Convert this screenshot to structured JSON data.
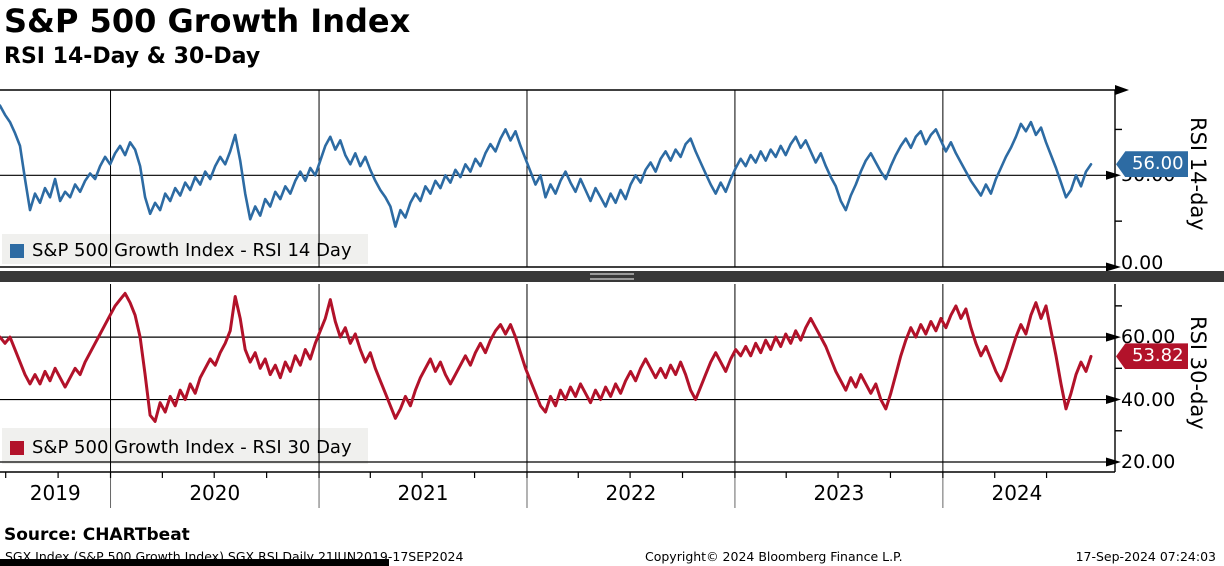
{
  "header": {
    "title": "S&P 500 Growth Index",
    "subtitle": "RSI 14-Day & 30-Day"
  },
  "colors": {
    "rsi14": "#2d6ba3",
    "rsi30": "#b2122a",
    "legend_bg": "#f0f0ee",
    "grid": "#000000",
    "separator": "#383838"
  },
  "right_axis": {
    "top": {
      "title": "RSI 14-day",
      "labels": [
        {
          "value": 50,
          "text": "50.00"
        },
        {
          "value": 0,
          "text": "0.00"
        }
      ],
      "minor_ticks": [
        25,
        75
      ],
      "badge": {
        "text": "56.00",
        "value": 56.0
      }
    },
    "bottom": {
      "title": "RSI 30-day",
      "labels": [
        {
          "value": 60,
          "text": "60.00"
        },
        {
          "value": 40,
          "text": "40.00"
        },
        {
          "value": 20,
          "text": "20.00"
        }
      ],
      "minor_ticks": [
        30,
        50,
        70
      ],
      "badge": {
        "text": "53.82",
        "value": 53.82
      }
    }
  },
  "legends": {
    "rsi14": "S&P 500 Growth Index - RSI 14 Day",
    "rsi30": "S&P 500 Growth Index - RSI 30 Day"
  },
  "x_axis": {
    "years": [
      "2019",
      "2020",
      "2021",
      "2022",
      "2023",
      "2024"
    ],
    "start_date": "21JUN2019",
    "end_date": "17SEP2024"
  },
  "footer": {
    "source": "Source: CHARTbeat",
    "left": "SGX Index (S&P 500 Growth Index) SGX RSI  Daily 21JUN2019-17SEP2024",
    "center": "Copyright© 2024 Bloomberg Finance L.P.",
    "right": "17-Sep-2024 07:24:03"
  },
  "chart_data": [
    {
      "type": "line",
      "title": "S&P 500 Growth Index - RSI 14 Day",
      "xlabel": "",
      "ylabel": "RSI 14-day",
      "x_range": [
        "21JUN2019",
        "17SEP2024"
      ],
      "ylim": [
        0,
        96.5
      ],
      "yticks": [
        0,
        50
      ],
      "legend_position": "bottom-left",
      "grid": true,
      "color": "#2d6ba3",
      "last_value": 56.0,
      "values": [
        88,
        83,
        79,
        73,
        66,
        48,
        31,
        40,
        35,
        43,
        38,
        48,
        36,
        41,
        38,
        45,
        41,
        47,
        51,
        48,
        55,
        60,
        56,
        62,
        66,
        61,
        68,
        64,
        55,
        38,
        29,
        35,
        31,
        40,
        36,
        43,
        39,
        46,
        42,
        49,
        45,
        52,
        48,
        55,
        60,
        56,
        63,
        72,
        58,
        40,
        26,
        33,
        28,
        37,
        33,
        41,
        37,
        44,
        40,
        47,
        52,
        47,
        54,
        50,
        58,
        66,
        71,
        64,
        69,
        61,
        56,
        62,
        55,
        60,
        53,
        47,
        42,
        38,
        33,
        22,
        31,
        27,
        35,
        40,
        36,
        44,
        40,
        47,
        43,
        50,
        46,
        53,
        49,
        56,
        52,
        59,
        55,
        62,
        67,
        63,
        70,
        75,
        69,
        74,
        66,
        59,
        52,
        45,
        50,
        38,
        45,
        40,
        47,
        52,
        46,
        41,
        48,
        42,
        36,
        43,
        38,
        33,
        40,
        35,
        42,
        37,
        45,
        50,
        46,
        53,
        57,
        52,
        59,
        63,
        58,
        64,
        60,
        67,
        70,
        63,
        57,
        51,
        45,
        40,
        46,
        41,
        48,
        54,
        59,
        55,
        61,
        57,
        63,
        58,
        64,
        60,
        66,
        61,
        67,
        71,
        65,
        69,
        63,
        57,
        62,
        55,
        49,
        44,
        36,
        31,
        39,
        45,
        52,
        58,
        62,
        57,
        52,
        48,
        55,
        61,
        66,
        70,
        65,
        71,
        74,
        67,
        72,
        75,
        69,
        63,
        68,
        62,
        57,
        52,
        47,
        43,
        39,
        45,
        40,
        48,
        54,
        60,
        65,
        71,
        78,
        74,
        79,
        72,
        76,
        68,
        61,
        54,
        46,
        38,
        42,
        50,
        44,
        52,
        56
      ]
    },
    {
      "type": "line",
      "title": "S&P 500 Growth Index - RSI 30 Day",
      "xlabel": "",
      "ylabel": "RSI 30-day",
      "x_range": [
        "21JUN2019",
        "17SEP2024"
      ],
      "ylim": [
        16.8,
        77
      ],
      "yticks": [
        20,
        40,
        60
      ],
      "legend_position": "bottom-left",
      "grid": true,
      "color": "#b2122a",
      "last_value": 53.82,
      "values": [
        60,
        58,
        60,
        56,
        52,
        48,
        45,
        48,
        45,
        49,
        46,
        50,
        47,
        44,
        47,
        50,
        48,
        52,
        55,
        58,
        61,
        64,
        67,
        70,
        72,
        74,
        71,
        67,
        60,
        48,
        35,
        33,
        39,
        36,
        41,
        38,
        43,
        40,
        45,
        42,
        47,
        50,
        53,
        51,
        55,
        58,
        62,
        73,
        66,
        56,
        52,
        55,
        50,
        53,
        48,
        51,
        47,
        52,
        49,
        54,
        51,
        56,
        53,
        58,
        62,
        66,
        72,
        65,
        60,
        63,
        58,
        61,
        56,
        52,
        55,
        50,
        46,
        42,
        38,
        34,
        37,
        41,
        38,
        43,
        47,
        50,
        53,
        49,
        52,
        48,
        45,
        48,
        51,
        54,
        51,
        55,
        58,
        55,
        59,
        62,
        64,
        61,
        64,
        60,
        55,
        50,
        46,
        42,
        38,
        36,
        41,
        38,
        43,
        40,
        44,
        41,
        45,
        42,
        39,
        43,
        40,
        44,
        41,
        45,
        42,
        46,
        49,
        46,
        50,
        53,
        50,
        47,
        50,
        47,
        51,
        48,
        52,
        48,
        43,
        40,
        44,
        48,
        52,
        55,
        52,
        49,
        53,
        56,
        54,
        57,
        54,
        58,
        55,
        59,
        56,
        60,
        57,
        61,
        58,
        62,
        59,
        63,
        66,
        63,
        60,
        57,
        53,
        49,
        46,
        43,
        47,
        44,
        48,
        45,
        42,
        45,
        40,
        37,
        42,
        48,
        54,
        59,
        63,
        60,
        64,
        61,
        65,
        62,
        66,
        63,
        67,
        70,
        66,
        69,
        63,
        58,
        54,
        57,
        53,
        49,
        46,
        50,
        55,
        60,
        64,
        61,
        67,
        71,
        66,
        70,
        62,
        54,
        45,
        37,
        42,
        48,
        52,
        49,
        53.82
      ]
    }
  ]
}
